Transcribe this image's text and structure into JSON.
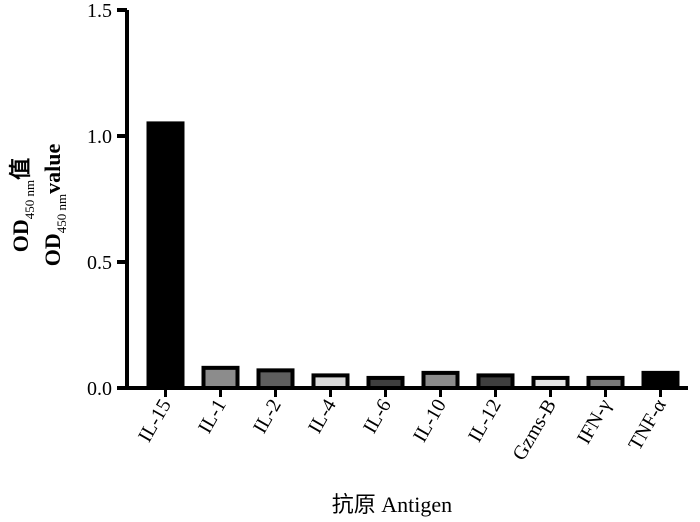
{
  "chart_data": {
    "type": "bar",
    "categories": [
      "IL-15",
      "IL-1",
      "IL-2",
      "IL-4",
      "IL-6",
      "IL-10",
      "IL-12",
      "Gzms-B",
      "IFN-γ",
      "TNF-α"
    ],
    "values": [
      1.05,
      0.08,
      0.07,
      0.05,
      0.04,
      0.06,
      0.05,
      0.04,
      0.04,
      0.06
    ],
    "bar_colors": [
      "#000000",
      "#8c8c8c",
      "#5e5e5e",
      "#d9d9d9",
      "#3f3f3f",
      "#8c8c8c",
      "#3f3f3f",
      "#e6e6e6",
      "#7a7a7a",
      "#000000"
    ],
    "ylim": [
      0,
      1.5
    ],
    "yticks": [
      "0.0",
      "0.5",
      "1.0",
      "1.5"
    ],
    "xlabel": "抗原 Antigen",
    "ylabel": {
      "line1_main": "OD",
      "line1_sub": "450 nm",
      "line1_tail": "值",
      "line2_main": "OD",
      "line2_sub": "450 nm",
      "line2_tail": "value"
    },
    "grid": false,
    "legend": "none"
  }
}
